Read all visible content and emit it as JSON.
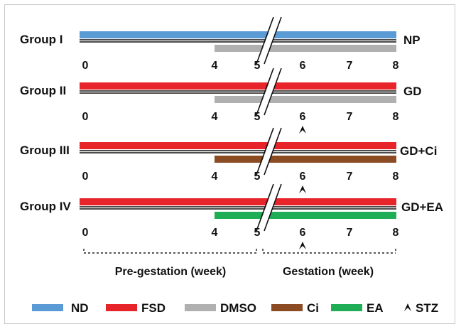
{
  "groups": [
    {
      "name": "Group I",
      "outcome": "NP",
      "diet": "nd",
      "treatment": "dmso",
      "stz": false
    },
    {
      "name": "Group II",
      "outcome": "GD",
      "diet": "fsd",
      "treatment": "dmso",
      "stz": true
    },
    {
      "name": "Group III",
      "outcome": "GD+Ci",
      "diet": "fsd",
      "treatment": "ci",
      "stz": true
    },
    {
      "name": "Group IV",
      "outcome": "GD+EA",
      "diet": "fsd",
      "treatment": "ea",
      "stz": true
    }
  ],
  "weeks": [
    "0",
    "4",
    "5",
    "6",
    "7",
    "8"
  ],
  "treatment_start_week": 4,
  "stz_week": 6,
  "periods": {
    "pregestation": "Pre-gestation (week)",
    "gestation": "Gestation (week)"
  },
  "legend": [
    {
      "key": "nd",
      "label": "ND",
      "color": "#5b9bd5"
    },
    {
      "key": "fsd",
      "label": "FSD",
      "color": "#e8242b"
    },
    {
      "key": "dmso",
      "label": "DMSO",
      "color": "#b0b0b0"
    },
    {
      "key": "ci",
      "label": "Ci",
      "color": "#8b4b23"
    },
    {
      "key": "ea",
      "label": "EA",
      "color": "#1fae55"
    },
    {
      "key": "stz",
      "label": "STZ",
      "icon": "arrowhead-icon"
    }
  ]
}
